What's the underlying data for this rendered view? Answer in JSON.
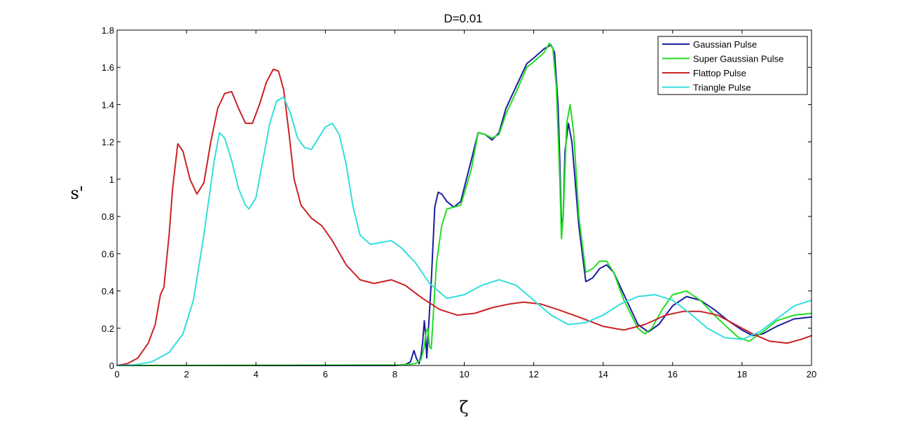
{
  "chart_data": {
    "type": "line",
    "title": "D=0.01",
    "xlabel": "ζ",
    "ylabel": "s'",
    "xlim": [
      0,
      20
    ],
    "ylim": [
      0,
      1.8
    ],
    "xticks": [
      0,
      2,
      4,
      6,
      8,
      10,
      12,
      14,
      16,
      18,
      20
    ],
    "yticks": [
      0,
      0.2,
      0.4,
      0.6,
      0.8,
      1,
      1.2,
      1.4,
      1.6,
      1.8
    ],
    "xtick_labels": [
      "0",
      "2",
      "4",
      "6",
      "8",
      "10",
      "12",
      "14",
      "16",
      "18",
      "20"
    ],
    "ytick_labels": [
      "0",
      "0.2",
      "0.4",
      "0.6",
      "0.8",
      "1",
      "1.2",
      "1.4",
      "1.6",
      "1.8"
    ],
    "grid": false,
    "legend_position": "top-right",
    "series": [
      {
        "name": "Gaussian Pulse",
        "color": "#1c1ca0",
        "x": [
          0,
          8.0,
          8.3,
          8.45,
          8.55,
          8.62,
          8.7,
          8.75,
          8.8,
          8.85,
          8.88,
          8.92,
          8.97,
          9.05,
          9.15,
          9.25,
          9.35,
          9.5,
          9.7,
          9.9,
          10.2,
          10.4,
          10.6,
          10.8,
          11.0,
          11.2,
          11.5,
          11.8,
          12.0,
          12.3,
          12.5,
          12.6,
          12.7,
          12.75,
          12.8,
          12.85,
          12.9,
          13.0,
          13.1,
          13.3,
          13.5,
          13.7,
          13.9,
          14.1,
          14.3,
          14.6,
          15.0,
          15.3,
          15.6,
          16.0,
          16.4,
          16.8,
          17.2,
          17.6,
          18.0,
          18.3,
          18.6,
          19.0,
          19.5,
          20.0
        ],
        "values": [
          0,
          0,
          0.005,
          0.02,
          0.08,
          0.04,
          0.01,
          0.05,
          0.12,
          0.24,
          0.18,
          0.04,
          0.2,
          0.45,
          0.85,
          0.93,
          0.92,
          0.88,
          0.85,
          0.88,
          1.1,
          1.25,
          1.24,
          1.21,
          1.25,
          1.38,
          1.5,
          1.62,
          1.65,
          1.7,
          1.72,
          1.68,
          1.4,
          1.1,
          0.75,
          0.8,
          1.15,
          1.3,
          1.2,
          0.75,
          0.45,
          0.47,
          0.52,
          0.54,
          0.5,
          0.38,
          0.22,
          0.18,
          0.22,
          0.32,
          0.37,
          0.35,
          0.3,
          0.24,
          0.19,
          0.16,
          0.17,
          0.21,
          0.25,
          0.26
        ]
      },
      {
        "name": "Super Gaussian Pulse",
        "color": "#22dd22",
        "x": [
          0,
          8.2,
          8.6,
          8.75,
          8.85,
          8.9,
          8.95,
          9.0,
          9.05,
          9.1,
          9.2,
          9.35,
          9.5,
          9.7,
          9.9,
          10.2,
          10.4,
          10.6,
          10.8,
          11.0,
          11.2,
          11.5,
          11.8,
          12.0,
          12.3,
          12.45,
          12.55,
          12.65,
          12.75,
          12.8,
          12.85,
          12.95,
          13.05,
          13.15,
          13.3,
          13.5,
          13.7,
          13.9,
          14.1,
          14.3,
          14.6,
          15.0,
          15.2,
          15.4,
          15.7,
          16.0,
          16.4,
          16.8,
          17.2,
          17.6,
          17.9,
          18.2,
          18.6,
          19.0,
          19.5,
          20.0
        ],
        "values": [
          0,
          0.003,
          0.01,
          0.03,
          0.1,
          0.18,
          0.2,
          0.1,
          0.09,
          0.25,
          0.55,
          0.75,
          0.84,
          0.85,
          0.86,
          1.05,
          1.25,
          1.24,
          1.22,
          1.24,
          1.35,
          1.47,
          1.6,
          1.63,
          1.68,
          1.73,
          1.7,
          1.5,
          1.0,
          0.68,
          0.8,
          1.3,
          1.4,
          1.25,
          0.8,
          0.5,
          0.52,
          0.56,
          0.56,
          0.5,
          0.35,
          0.2,
          0.17,
          0.2,
          0.3,
          0.38,
          0.4,
          0.35,
          0.27,
          0.2,
          0.15,
          0.13,
          0.18,
          0.24,
          0.27,
          0.28
        ]
      },
      {
        "name": "Flattop Pulse",
        "color": "#cc2222",
        "x": [
          0,
          0.3,
          0.6,
          0.9,
          1.1,
          1.25,
          1.35,
          1.5,
          1.6,
          1.75,
          1.9,
          2.1,
          2.3,
          2.5,
          2.7,
          2.9,
          3.1,
          3.3,
          3.5,
          3.7,
          3.9,
          4.1,
          4.3,
          4.5,
          4.65,
          4.8,
          4.95,
          5.1,
          5.3,
          5.6,
          5.9,
          6.2,
          6.6,
          7.0,
          7.4,
          7.9,
          8.3,
          8.8,
          9.3,
          9.8,
          10.3,
          10.8,
          11.3,
          11.7,
          12.2,
          12.7,
          13.3,
          14.0,
          14.6,
          15.2,
          15.8,
          16.3,
          16.8,
          17.3,
          17.8,
          18.3,
          18.8,
          19.3,
          19.7,
          20.0
        ],
        "values": [
          0,
          0.01,
          0.04,
          0.12,
          0.22,
          0.38,
          0.42,
          0.7,
          0.95,
          1.19,
          1.15,
          1.0,
          0.92,
          0.98,
          1.2,
          1.38,
          1.46,
          1.47,
          1.38,
          1.3,
          1.3,
          1.4,
          1.52,
          1.59,
          1.58,
          1.48,
          1.25,
          1.0,
          0.86,
          0.79,
          0.75,
          0.67,
          0.54,
          0.46,
          0.44,
          0.46,
          0.43,
          0.36,
          0.3,
          0.27,
          0.28,
          0.31,
          0.33,
          0.34,
          0.33,
          0.3,
          0.26,
          0.21,
          0.19,
          0.22,
          0.27,
          0.29,
          0.29,
          0.27,
          0.22,
          0.17,
          0.13,
          0.12,
          0.14,
          0.16
        ]
      },
      {
        "name": "Triangle Pulse",
        "color": "#33dddd",
        "x": [
          0,
          0.5,
          1.0,
          1.5,
          1.9,
          2.2,
          2.5,
          2.8,
          2.95,
          3.1,
          3.3,
          3.5,
          3.7,
          3.8,
          4.0,
          4.2,
          4.4,
          4.6,
          4.8,
          5.0,
          5.2,
          5.4,
          5.6,
          5.8,
          6.0,
          6.2,
          6.4,
          6.6,
          6.8,
          7.0,
          7.3,
          7.6,
          7.9,
          8.2,
          8.6,
          9.0,
          9.5,
          10.0,
          10.5,
          11.0,
          11.5,
          12.0,
          12.5,
          13.0,
          13.5,
          14.0,
          14.5,
          15.0,
          15.5,
          16.0,
          16.5,
          17.0,
          17.5,
          18.0,
          18.5,
          19.0,
          19.5,
          20.0
        ],
        "values": [
          0,
          0.003,
          0.02,
          0.07,
          0.17,
          0.35,
          0.7,
          1.1,
          1.25,
          1.22,
          1.1,
          0.95,
          0.86,
          0.84,
          0.9,
          1.1,
          1.3,
          1.42,
          1.44,
          1.35,
          1.22,
          1.17,
          1.16,
          1.22,
          1.28,
          1.3,
          1.24,
          1.08,
          0.85,
          0.7,
          0.65,
          0.66,
          0.67,
          0.63,
          0.55,
          0.44,
          0.36,
          0.38,
          0.43,
          0.46,
          0.43,
          0.35,
          0.27,
          0.22,
          0.23,
          0.27,
          0.33,
          0.37,
          0.38,
          0.35,
          0.28,
          0.2,
          0.15,
          0.14,
          0.18,
          0.25,
          0.32,
          0.35
        ]
      }
    ]
  }
}
